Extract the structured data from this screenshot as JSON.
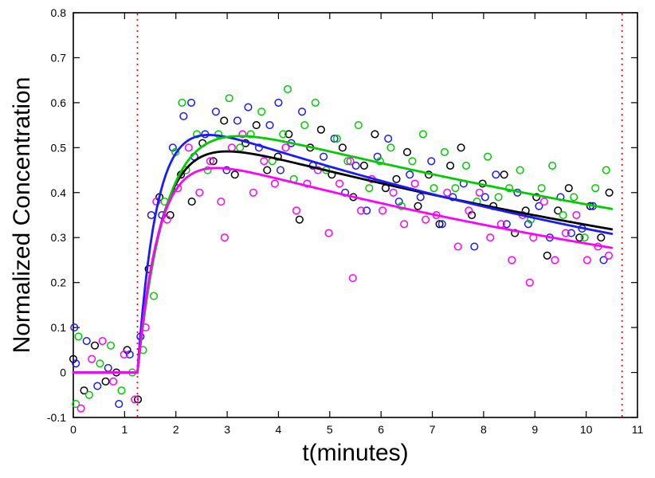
{
  "figure": {
    "background": "#ffffff",
    "frame_color": "#000000"
  },
  "chart_data": {
    "type": "scatter",
    "title": "",
    "xlabel": "t(minutes)",
    "ylabel": "Normalized Concentration",
    "xlim": [
      0,
      11
    ],
    "ylim": [
      -0.1,
      0.8
    ],
    "grid": false,
    "legend": "none",
    "xticks": [
      0,
      1,
      2,
      3,
      4,
      5,
      6,
      7,
      8,
      9,
      10,
      11
    ],
    "xtick_labels": [
      "0",
      "1",
      "2",
      "3",
      "4",
      "5",
      "6",
      "7",
      "8",
      "9",
      "10",
      "11"
    ],
    "yticks": [
      -0.1,
      0,
      0.1,
      0.2,
      0.3,
      0.4,
      0.5,
      0.6,
      0.7,
      0.8
    ],
    "ytick_labels": [
      "-0.1",
      "0",
      "0.1",
      "0.2",
      "0.3",
      "0.4",
      "0.5",
      "0.6",
      "0.7",
      "0.8"
    ],
    "vlines": {
      "x": [
        1.25,
        10.7
      ],
      "color": "#ff0000",
      "style": "dotted"
    },
    "fit_model": "y = 0 for t < t0 ; y = A*(1-exp(-k*(t-t0)))*exp(-d*(t-t0)) for t >= t0",
    "curve_t_range": [
      0,
      10.5
    ],
    "series": [
      {
        "name": "black",
        "color": "#000000",
        "fit": {
          "t0": 1.25,
          "A": 0.565,
          "k": 2.0,
          "d": 0.062
        },
        "points": [
          [
            0,
            0.03
          ],
          [
            0.21,
            -0.04
          ],
          [
            0.42,
            0.06
          ],
          [
            0.63,
            -0.02
          ],
          [
            0.84,
            0
          ],
          [
            1.05,
            0.05
          ],
          [
            1.26,
            -0.06
          ],
          [
            1.47,
            0.23
          ],
          [
            1.68,
            0.39
          ],
          [
            1.89,
            0.35
          ],
          [
            2.1,
            0.44
          ],
          [
            2.31,
            0.38
          ],
          [
            2.52,
            0.51
          ],
          [
            2.73,
            0.47
          ],
          [
            2.94,
            0.56
          ],
          [
            3.15,
            0.44
          ],
          [
            3.36,
            0.51
          ],
          [
            3.57,
            0.55
          ],
          [
            3.78,
            0.45
          ],
          [
            3.99,
            0.48
          ],
          [
            4.2,
            0.53
          ],
          [
            4.41,
            0.34
          ],
          [
            4.62,
            0.5
          ],
          [
            4.83,
            0.54
          ],
          [
            5.04,
            0.44
          ],
          [
            5.25,
            0.5
          ],
          [
            5.46,
            0.39
          ],
          [
            5.67,
            0.46
          ],
          [
            5.88,
            0.53
          ],
          [
            6.09,
            0.41
          ],
          [
            6.3,
            0.43
          ],
          [
            6.51,
            0.49
          ],
          [
            6.72,
            0.37
          ],
          [
            6.93,
            0.44
          ],
          [
            7.14,
            0.33
          ],
          [
            7.35,
            0.46
          ],
          [
            7.56,
            0.5
          ],
          [
            7.77,
            0.35
          ],
          [
            7.98,
            0.42
          ],
          [
            8.19,
            0.37
          ],
          [
            8.4,
            0.44
          ],
          [
            8.61,
            0.31
          ],
          [
            8.82,
            0.36
          ],
          [
            9.03,
            0.39
          ],
          [
            9.24,
            0.26
          ],
          [
            9.45,
            0.36
          ],
          [
            9.66,
            0.41
          ],
          [
            9.87,
            0.3
          ],
          [
            10.08,
            0.37
          ],
          [
            10.29,
            0.3
          ],
          [
            10.45,
            0.4
          ]
        ]
      },
      {
        "name": "blue",
        "color": "#1a1aff",
        "fit": {
          "t0": 1.25,
          "A": 0.6,
          "k": 2.6,
          "d": 0.072
        },
        "points": [
          [
            0.02,
            0.1
          ],
          [
            0.05,
            0.02
          ],
          [
            0.26,
            0.07
          ],
          [
            0.47,
            -0.03
          ],
          [
            0.68,
            0.01
          ],
          [
            0.89,
            -0.07
          ],
          [
            1.1,
            0.04
          ],
          [
            1.31,
            0.08
          ],
          [
            1.52,
            0.35
          ],
          [
            1.73,
            0.35
          ],
          [
            1.94,
            0.5
          ],
          [
            2.15,
            0.57
          ],
          [
            2.3,
            0.6
          ],
          [
            2.36,
            0.48
          ],
          [
            2.57,
            0.53
          ],
          [
            2.78,
            0.58
          ],
          [
            2.99,
            0.45
          ],
          [
            3.2,
            0.56
          ],
          [
            3.41,
            0.59
          ],
          [
            3.62,
            0.5
          ],
          [
            3.83,
            0.55
          ],
          [
            4,
            0.6
          ],
          [
            4.04,
            0.45
          ],
          [
            4.25,
            0.51
          ],
          [
            4.46,
            0.58
          ],
          [
            4.67,
            0.46
          ],
          [
            4.88,
            0.48
          ],
          [
            5.09,
            0.52
          ],
          [
            5.3,
            0.4
          ],
          [
            5.51,
            0.46
          ],
          [
            5.72,
            0.36
          ],
          [
            5.93,
            0.48
          ],
          [
            6.14,
            0.52
          ],
          [
            6.35,
            0.38
          ],
          [
            6.56,
            0.44
          ],
          [
            6.77,
            0.39
          ],
          [
            6.98,
            0.47
          ],
          [
            7.19,
            0.33
          ],
          [
            7.4,
            0.39
          ],
          [
            7.61,
            0.42
          ],
          [
            7.82,
            0.28
          ],
          [
            8.03,
            0.39
          ],
          [
            8.24,
            0.44
          ],
          [
            8.45,
            0.33
          ],
          [
            8.66,
            0.4
          ],
          [
            8.87,
            0.33
          ],
          [
            9.08,
            0.37
          ],
          [
            9.29,
            0.3
          ],
          [
            9.5,
            0.39
          ],
          [
            9.71,
            0.31
          ],
          [
            9.92,
            0.32
          ],
          [
            10.13,
            0.37
          ],
          [
            10.34,
            0.25
          ]
        ]
      },
      {
        "name": "green",
        "color": "#00cc00",
        "fit": {
          "t0": 1.25,
          "A": 0.605,
          "k": 1.75,
          "d": 0.055
        },
        "points": [
          [
            0.05,
            -0.07
          ],
          [
            0.1,
            0.08
          ],
          [
            0.31,
            -0.05
          ],
          [
            0.52,
            0.02
          ],
          [
            0.73,
            0.06
          ],
          [
            0.94,
            -0.04
          ],
          [
            1.15,
            0
          ],
          [
            1.36,
            0.05
          ],
          [
            1.57,
            0.17
          ],
          [
            1.78,
            0.38
          ],
          [
            1.99,
            0.49
          ],
          [
            2.12,
            0.6
          ],
          [
            2.2,
            0.45
          ],
          [
            2.41,
            0.53
          ],
          [
            2.62,
            0.45
          ],
          [
            2.83,
            0.53
          ],
          [
            3.04,
            0.61
          ],
          [
            3.25,
            0.5
          ],
          [
            3.46,
            0.53
          ],
          [
            3.67,
            0.58
          ],
          [
            3.88,
            0.47
          ],
          [
            4.09,
            0.53
          ],
          [
            4.18,
            0.63
          ],
          [
            4.3,
            0.43
          ],
          [
            4.51,
            0.55
          ],
          [
            4.72,
            0.6
          ],
          [
            4.93,
            0.45
          ],
          [
            5.14,
            0.52
          ],
          [
            5.35,
            0.47
          ],
          [
            5.56,
            0.55
          ],
          [
            5.77,
            0.41
          ],
          [
            5.98,
            0.47
          ],
          [
            6.19,
            0.5
          ],
          [
            6.4,
            0.37
          ],
          [
            6.61,
            0.47
          ],
          [
            6.82,
            0.53
          ],
          [
            7.03,
            0.41
          ],
          [
            7.24,
            0.49
          ],
          [
            7.45,
            0.41
          ],
          [
            7.66,
            0.46
          ],
          [
            7.87,
            0.38
          ],
          [
            8.08,
            0.48
          ],
          [
            8.29,
            0.39
          ],
          [
            8.5,
            0.41
          ],
          [
            8.71,
            0.45
          ],
          [
            8.92,
            0.34
          ],
          [
            9.13,
            0.41
          ],
          [
            9.34,
            0.46
          ],
          [
            9.55,
            0.35
          ],
          [
            9.76,
            0.39
          ],
          [
            9.97,
            0.3
          ],
          [
            10.18,
            0.41
          ],
          [
            10.39,
            0.45
          ]
        ]
      },
      {
        "name": "magenta",
        "color": "#ff00ff",
        "fit": {
          "t0": 1.25,
          "A": 0.52,
          "k": 2.3,
          "d": 0.068
        },
        "points": [
          [
            0.15,
            -0.08
          ],
          [
            0.36,
            0.03
          ],
          [
            0.57,
            0.07
          ],
          [
            0.78,
            -0.02
          ],
          [
            0.99,
            0.04
          ],
          [
            1.2,
            -0.06
          ],
          [
            1.41,
            0.1
          ],
          [
            1.62,
            0.38
          ],
          [
            1.83,
            0.34
          ],
          [
            2.04,
            0.41
          ],
          [
            2.25,
            0.5
          ],
          [
            2.46,
            0.4
          ],
          [
            2.67,
            0.47
          ],
          [
            2.88,
            0.38
          ],
          [
            2.95,
            0.3
          ],
          [
            3.09,
            0.5
          ],
          [
            3.3,
            0.53
          ],
          [
            3.51,
            0.4
          ],
          [
            3.72,
            0.47
          ],
          [
            3.93,
            0.42
          ],
          [
            4.14,
            0.5
          ],
          [
            4.35,
            0.36
          ],
          [
            4.56,
            0.42
          ],
          [
            4.77,
            0.45
          ],
          [
            4.98,
            0.31
          ],
          [
            5.19,
            0.42
          ],
          [
            5.4,
            0.47
          ],
          [
            5.45,
            0.21
          ],
          [
            5.61,
            0.36
          ],
          [
            5.82,
            0.43
          ],
          [
            6.03,
            0.36
          ],
          [
            6.24,
            0.4
          ],
          [
            6.45,
            0.33
          ],
          [
            6.66,
            0.42
          ],
          [
            6.87,
            0.34
          ],
          [
            7.08,
            0.35
          ],
          [
            7.29,
            0.4
          ],
          [
            7.5,
            0.28
          ],
          [
            7.71,
            0.36
          ],
          [
            7.92,
            0.4
          ],
          [
            8.13,
            0.3
          ],
          [
            8.34,
            0.33
          ],
          [
            8.55,
            0.25
          ],
          [
            8.76,
            0.35
          ],
          [
            8.9,
            0.2
          ],
          [
            8.97,
            0.3
          ],
          [
            9.18,
            0.38
          ],
          [
            9.39,
            0.25
          ],
          [
            9.6,
            0.31
          ],
          [
            9.81,
            0.35
          ],
          [
            10.02,
            0.25
          ],
          [
            10.23,
            0.28
          ],
          [
            10.44,
            0.26
          ]
        ]
      }
    ]
  }
}
